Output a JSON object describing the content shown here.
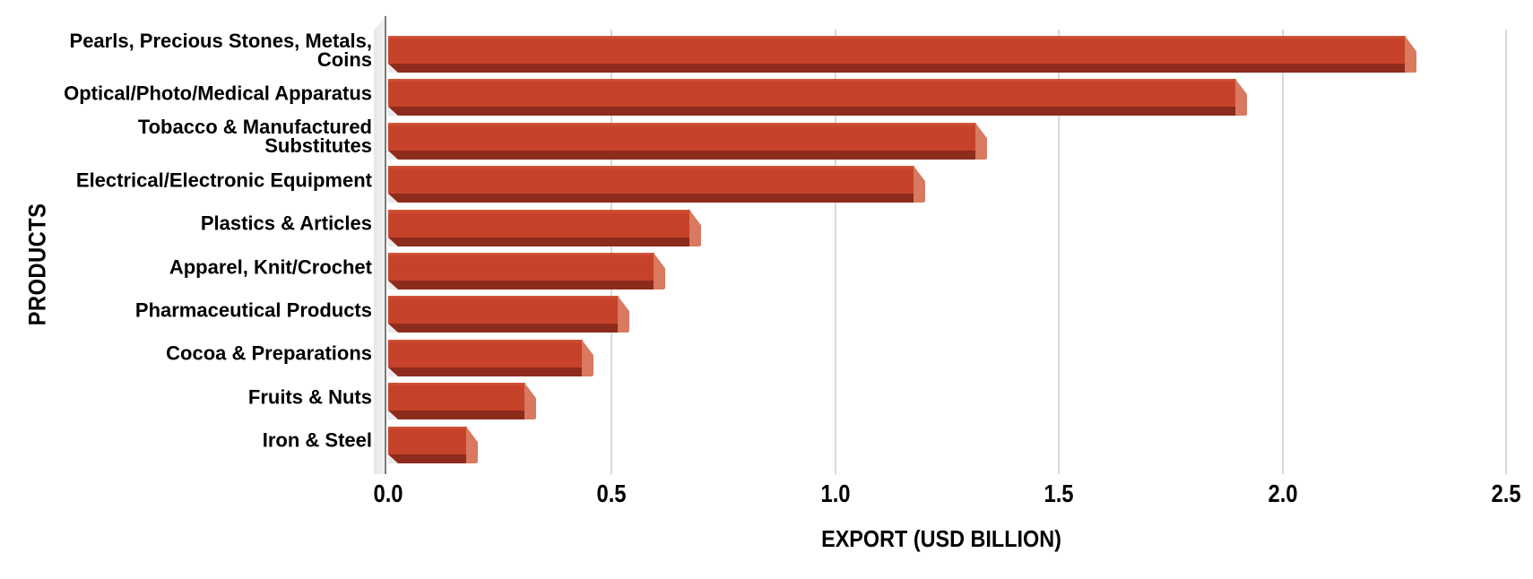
{
  "chart_data": {
    "type": "bar",
    "orientation": "horizontal",
    "title": "",
    "xlabel": "EXPORT (USD BILLION)",
    "ylabel": "PRODUCTS",
    "categories": [
      "Pearls, Precious Stones, Metals, Coins",
      "Optical/Photo/Medical Apparatus",
      "Tobacco & Manufactured Substitutes",
      "Electrical/Electronic Equipment",
      "Plastics & Articles",
      "Apparel, Knit/Crochet",
      "Pharmaceutical Products",
      "Cocoa & Preparations",
      "Fruits & Nuts",
      "Iron & Steel"
    ],
    "values": [
      2.3,
      1.92,
      1.34,
      1.2,
      0.7,
      0.62,
      0.54,
      0.46,
      0.33,
      0.2
    ],
    "xlim": [
      0,
      2.5
    ],
    "xticks": [
      0,
      0.5,
      1,
      1.5,
      2,
      2.5
    ],
    "xtick_labels": [
      "0.0",
      "0.5",
      "1.0",
      "1.5",
      "2.0",
      "2.5"
    ],
    "grid": true,
    "legend": false,
    "colors": {
      "bar_face": "#c7422a",
      "bar_face_highlight": "#d05a3c",
      "bar_bottom_shadow": "#8d2b1c",
      "bar_end_cap": "#d97a60",
      "gridline": "#d9d9d9",
      "axis_line": "#7d7d7d",
      "axis_wall": "#f0eeef",
      "text": "#000000",
      "background": "#ffffff"
    }
  }
}
